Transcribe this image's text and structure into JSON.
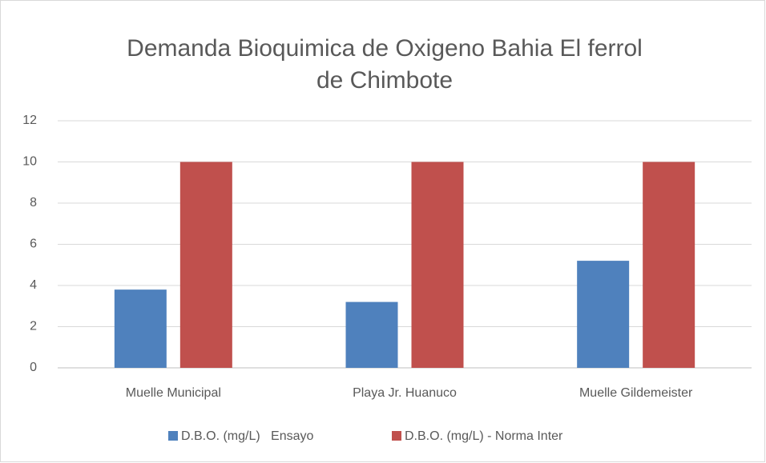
{
  "chart_data": {
    "type": "bar",
    "title": [
      "Demanda Bioquimica de Oxigeno Bahia El ferrol",
      "de Chimbote"
    ],
    "categories": [
      "Muelle Municipal",
      "Playa Jr. Huanuco",
      "Muelle Gildemeister"
    ],
    "series": [
      {
        "name": "D.B.O. (mg/L)   Ensayo",
        "color": "#4f81bd",
        "values": [
          3.8,
          3.2,
          5.2
        ]
      },
      {
        "name": "D.B.O. (mg/L) - Norma Inter",
        "color": "#c0504d",
        "values": [
          10,
          10,
          10
        ]
      }
    ],
    "ylim": [
      0,
      12
    ],
    "yticks": [
      0,
      2,
      4,
      6,
      8,
      10,
      12
    ],
    "grid": true,
    "legend": "bottom"
  }
}
